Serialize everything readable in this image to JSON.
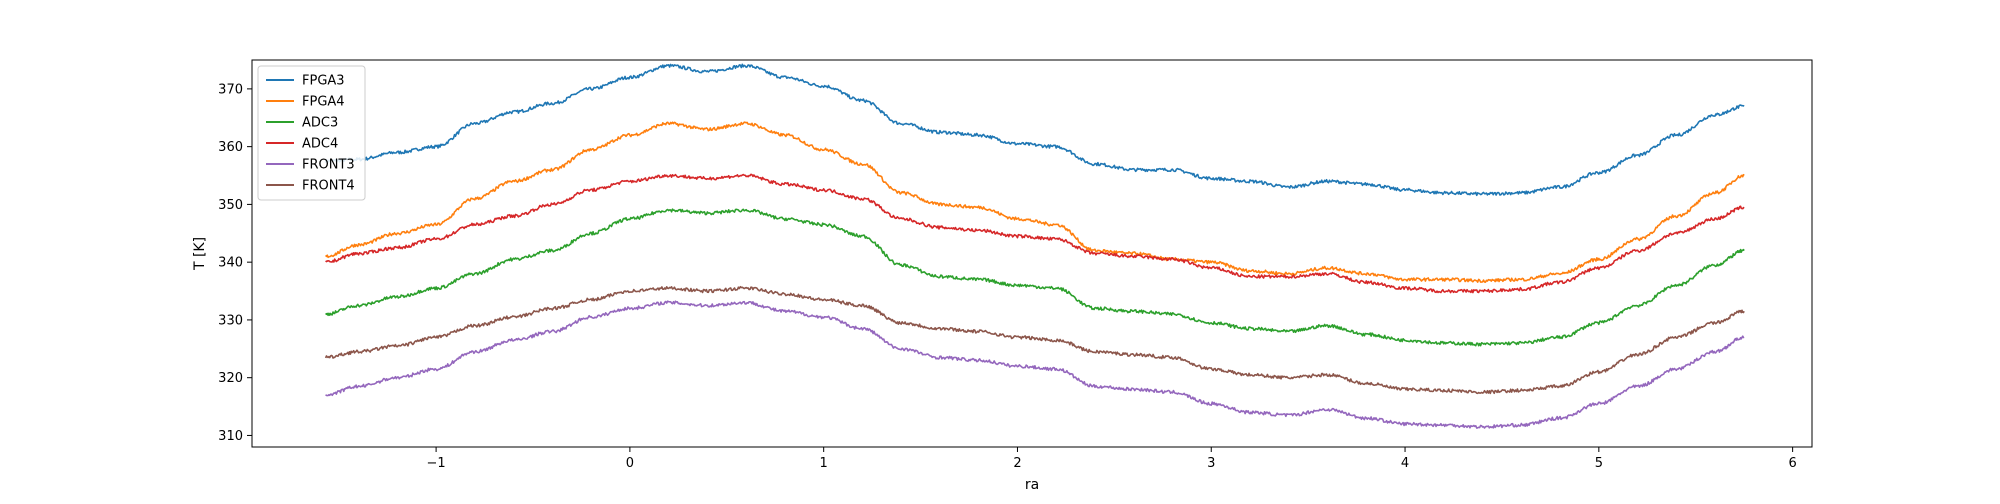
{
  "chart_data": {
    "type": "line",
    "title": "",
    "xlabel": "ra",
    "ylabel": "T [K]",
    "xlim": [
      -1.95,
      6.1
    ],
    "ylim": [
      308,
      375
    ],
    "xticks": [
      -1,
      0,
      1,
      2,
      3,
      4,
      5,
      6
    ],
    "yticks": [
      310,
      320,
      330,
      340,
      350,
      360,
      370
    ],
    "grid": false,
    "legend_position": "upper left",
    "x": [
      -1.57,
      -1.4,
      -1.2,
      -1.0,
      -0.8,
      -0.6,
      -0.4,
      -0.2,
      0.0,
      0.2,
      0.4,
      0.6,
      0.8,
      1.0,
      1.2,
      1.4,
      1.6,
      1.8,
      2.0,
      2.2,
      2.4,
      2.6,
      2.8,
      3.0,
      3.2,
      3.4,
      3.6,
      3.8,
      4.0,
      4.2,
      4.4,
      4.6,
      4.8,
      5.0,
      5.2,
      5.4,
      5.6,
      5.75
    ],
    "series": [
      {
        "name": "FPGA3",
        "color": "#1f77b4",
        "values": [
          357.5,
          357.8,
          359,
          360,
          364,
          366,
          367.5,
          370,
          372,
          374,
          373,
          374,
          372,
          370.5,
          368,
          364,
          362.5,
          362,
          360.5,
          360,
          357,
          356,
          356,
          354.5,
          354,
          353,
          354,
          353.5,
          352.5,
          352,
          351.8,
          352,
          353,
          355.5,
          358.5,
          362,
          365.5,
          367
        ]
      },
      {
        "name": "FPGA4",
        "color": "#ff7f0e",
        "values": [
          341,
          343,
          345,
          346.5,
          351,
          354,
          356,
          359.5,
          362,
          364,
          363,
          364,
          362,
          359.5,
          357,
          352,
          350,
          349.5,
          347.5,
          346.5,
          342,
          341.5,
          340.5,
          340,
          338.5,
          338,
          339,
          338,
          337,
          337,
          336.8,
          337,
          338,
          340.5,
          344,
          348,
          352,
          355
        ]
      },
      {
        "name": "ADC3",
        "color": "#2ca02c",
        "values": [
          331,
          332.5,
          334,
          335.5,
          338,
          340.5,
          342,
          345,
          347.5,
          349,
          348.5,
          349,
          347.5,
          346.5,
          344.5,
          339.5,
          337.5,
          337,
          336,
          335.5,
          332,
          331.5,
          331,
          329.5,
          328.5,
          328,
          329,
          327.5,
          326.5,
          326,
          325.8,
          326,
          327,
          329.5,
          332.5,
          336,
          339.5,
          342
        ]
      },
      {
        "name": "ADC4",
        "color": "#d62728",
        "values": [
          340,
          341.5,
          342.5,
          344,
          346.5,
          348,
          350,
          352.5,
          354,
          355,
          354.5,
          355,
          353.5,
          352.5,
          351,
          347.5,
          346,
          345.5,
          344.5,
          344,
          341.5,
          341,
          340.5,
          339,
          337.5,
          337.5,
          338,
          336.5,
          335.5,
          335,
          335,
          335.3,
          336.5,
          339,
          342,
          345,
          347.5,
          349.5
        ]
      },
      {
        "name": "FRONT3",
        "color": "#9467bd",
        "values": [
          317,
          318.5,
          320,
          321.5,
          324.5,
          326.5,
          328,
          330.5,
          332,
          333,
          332.5,
          333,
          331.5,
          330.5,
          328.5,
          325,
          323.5,
          323,
          322,
          321.5,
          318.5,
          318,
          317.5,
          315.5,
          314,
          313.5,
          314.5,
          313,
          312,
          311.8,
          311.5,
          311.8,
          313,
          315.5,
          318.5,
          321.5,
          324.5,
          327
        ]
      },
      {
        "name": "FRONT4",
        "color": "#8c564b",
        "values": [
          323.5,
          324.5,
          325.5,
          327,
          329,
          330.5,
          332,
          333.5,
          335,
          335.5,
          335,
          335.5,
          334.5,
          333.5,
          332.5,
          329.5,
          328.5,
          328,
          327,
          326.5,
          324.5,
          324,
          323.5,
          321.5,
          320.5,
          320,
          320.5,
          319,
          318,
          317.8,
          317.5,
          317.8,
          318.5,
          321,
          324,
          327,
          329.5,
          331.5
        ]
      }
    ]
  }
}
